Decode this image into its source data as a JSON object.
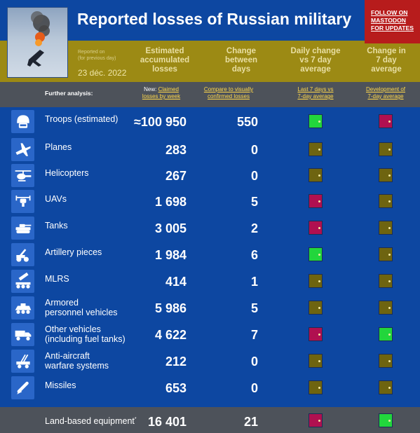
{
  "header": {
    "title": "Reported losses of Russian military",
    "mastodon_line1": "FOLLOW ON",
    "mastodon_line2": "MASTODON",
    "mastodon_line3": "FOR UPDATES"
  },
  "subheader": {
    "reported_on": "Reported on",
    "for_previous_day": "(for previous day)",
    "date": "23 déc. 2022",
    "col_estimated": [
      "Estimated",
      "accumulated",
      "losses"
    ],
    "col_change": [
      "Change",
      "between",
      "days"
    ],
    "col_daily": [
      "Daily change",
      "vs 7 day",
      "average"
    ],
    "col_change7": [
      "Change in",
      "7 day",
      "average"
    ]
  },
  "analysis": {
    "label": "Further analysis:",
    "new_prefix": "New:",
    "claimed_line1": "Claimed",
    "claimed_line2": "losses by week",
    "compare_line1": "Compare to visually",
    "compare_line2": "confirmed losses",
    "last7_line1": "Last 7 days vs",
    "last7_line2": "7-day average",
    "dev_line1": "Development of",
    "dev_line2": "7-day average"
  },
  "colors": {
    "green": "#22d63c",
    "red": "#b01050",
    "olive": "#6e6410"
  },
  "rows": [
    {
      "icon": "soldier-helmet-icon",
      "label1": "Troops (estimated)",
      "label2": "",
      "value": "≈100 950",
      "change": "550",
      "daily": "green",
      "trend": "red"
    },
    {
      "icon": "plane-icon",
      "label1": "Planes",
      "label2": "",
      "value": "283",
      "change": "0",
      "daily": "olive",
      "trend": "olive"
    },
    {
      "icon": "helicopter-icon",
      "label1": "Helicopters",
      "label2": "",
      "value": "267",
      "change": "0",
      "daily": "olive",
      "trend": "olive"
    },
    {
      "icon": "drone-icon",
      "label1": "UAVs",
      "label2": "",
      "value": "1 698",
      "change": "5",
      "daily": "red",
      "trend": "olive"
    },
    {
      "icon": "tank-icon",
      "label1": "Tanks",
      "label2": "",
      "value": "3 005",
      "change": "2",
      "daily": "red",
      "trend": "olive"
    },
    {
      "icon": "artillery-icon",
      "label1": "Artillery pieces",
      "label2": "",
      "value": "1 984",
      "change": "6",
      "daily": "green",
      "trend": "olive"
    },
    {
      "icon": "rocket-launcher-icon",
      "label1": "MLRS",
      "label2": "",
      "value": "414",
      "change": "1",
      "daily": "olive",
      "trend": "olive"
    },
    {
      "icon": "apc-icon",
      "label1": "Armored",
      "label2": "personnel vehicles",
      "value": "5 986",
      "change": "5",
      "daily": "olive",
      "trend": "olive"
    },
    {
      "icon": "truck-icon",
      "label1": "Other vehicles",
      "label2": "(including fuel tanks)",
      "value": "4 622",
      "change": "7",
      "daily": "red",
      "trend": "green"
    },
    {
      "icon": "anti-aircraft-icon",
      "label1": "Anti-aircraft",
      "label2": "warfare systems",
      "value": "212",
      "change": "0",
      "daily": "olive",
      "trend": "olive"
    },
    {
      "icon": "missile-icon",
      "label1": "Missiles",
      "label2": "",
      "value": "653",
      "change": "0",
      "daily": "olive",
      "trend": "olive"
    }
  ],
  "footer": {
    "label": "Land-based equipment",
    "marker": "*",
    "value": "16 401",
    "change": "21",
    "daily": "red",
    "trend": "green"
  }
}
